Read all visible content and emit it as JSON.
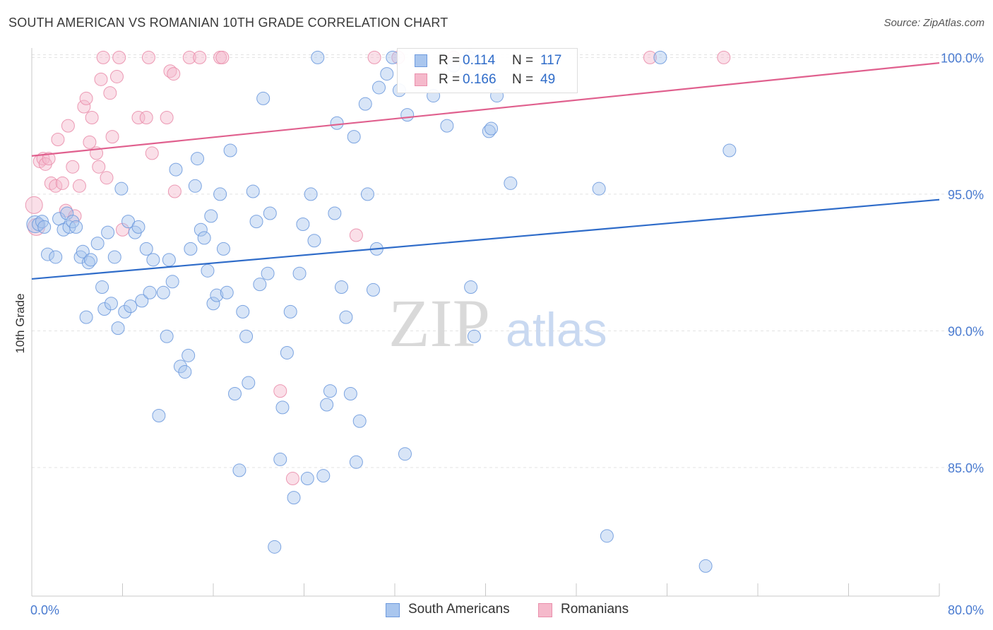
{
  "header": {
    "title": "SOUTH AMERICAN VS ROMANIAN 10TH GRADE CORRELATION CHART",
    "source": "Source: ZipAtlas.com"
  },
  "watermark": {
    "zip": "ZIP",
    "atlas": "atlas"
  },
  "legend": {
    "south": {
      "r_label": "R =",
      "r_value": "0.114",
      "n_label": "N =",
      "n_value": "117"
    },
    "romanian": {
      "r_label": "R =",
      "r_value": "0.166",
      "n_label": "N =",
      "n_value": "49"
    }
  },
  "bottom_legend": {
    "south": "South Americans",
    "romanian": "Romanians"
  },
  "colors": {
    "blue_fill": "#a9c6ee",
    "blue_stroke": "#6f9bde",
    "blue_line": "#2f6cc9",
    "pink_fill": "#f5b9cb",
    "pink_stroke": "#ea8fac",
    "pink_line": "#e0608e",
    "tick_label": "#4a7bd0",
    "grid": "#e3e3e3"
  },
  "chart_data": {
    "type": "scatter",
    "title": "SOUTH AMERICAN VS ROMANIAN 10TH GRADE CORRELATION CHART",
    "xlabel": "",
    "ylabel": "10th Grade",
    "xlim": [
      0,
      80
    ],
    "ylim": [
      80.3,
      100.5
    ],
    "x_tick_labels": [
      "0.0%",
      "80.0%"
    ],
    "y_ticks": [
      85,
      90,
      95,
      100
    ],
    "y_tick_labels": [
      "85.0%",
      "90.0%",
      "95.0%",
      "100.0%"
    ],
    "grid": "horizontal dashed",
    "legend_position": "top-center",
    "series": [
      {
        "name": "South Americans",
        "color": "#a9c6ee",
        "trend": {
          "x": [
            0,
            80
          ],
          "y": [
            91.9,
            94.8
          ]
        },
        "points": [
          [
            0.3,
            93.9
          ],
          [
            0.6,
            93.9
          ],
          [
            0.9,
            94.0
          ],
          [
            1.1,
            93.8
          ],
          [
            1.4,
            92.8
          ],
          [
            2.1,
            92.7
          ],
          [
            2.4,
            94.1
          ],
          [
            2.8,
            93.7
          ],
          [
            3.1,
            94.3
          ],
          [
            3.3,
            93.8
          ],
          [
            3.6,
            94.0
          ],
          [
            3.9,
            93.8
          ],
          [
            4.3,
            92.7
          ],
          [
            4.5,
            92.9
          ],
          [
            5.0,
            92.5
          ],
          [
            5.2,
            92.6
          ],
          [
            4.8,
            90.5
          ],
          [
            5.8,
            93.2
          ],
          [
            6.2,
            91.6
          ],
          [
            6.4,
            90.8
          ],
          [
            6.7,
            93.6
          ],
          [
            7.0,
            91.0
          ],
          [
            7.3,
            92.7
          ],
          [
            7.6,
            90.1
          ],
          [
            7.9,
            95.2
          ],
          [
            8.2,
            90.7
          ],
          [
            8.5,
            94.0
          ],
          [
            8.7,
            90.9
          ],
          [
            9.1,
            93.6
          ],
          [
            9.4,
            93.8
          ],
          [
            9.7,
            91.1
          ],
          [
            10.1,
            93.0
          ],
          [
            10.4,
            91.4
          ],
          [
            10.7,
            92.6
          ],
          [
            11.2,
            86.9
          ],
          [
            11.6,
            91.4
          ],
          [
            11.9,
            89.8
          ],
          [
            12.1,
            92.6
          ],
          [
            12.4,
            91.8
          ],
          [
            12.7,
            95.9
          ],
          [
            13.1,
            88.7
          ],
          [
            13.5,
            88.5
          ],
          [
            13.8,
            89.1
          ],
          [
            14.0,
            93.0
          ],
          [
            14.4,
            95.3
          ],
          [
            14.6,
            96.3
          ],
          [
            14.9,
            93.7
          ],
          [
            15.2,
            93.4
          ],
          [
            15.5,
            92.2
          ],
          [
            15.8,
            94.2
          ],
          [
            16.0,
            91.0
          ],
          [
            16.3,
            91.3
          ],
          [
            16.6,
            95.0
          ],
          [
            16.9,
            93.0
          ],
          [
            17.2,
            91.4
          ],
          [
            17.5,
            96.6
          ],
          [
            17.9,
            87.7
          ],
          [
            18.3,
            84.9
          ],
          [
            18.6,
            90.7
          ],
          [
            18.9,
            89.8
          ],
          [
            19.1,
            88.1
          ],
          [
            19.5,
            95.1
          ],
          [
            19.8,
            94.0
          ],
          [
            20.1,
            91.7
          ],
          [
            20.4,
            98.5
          ],
          [
            20.8,
            92.1
          ],
          [
            21.0,
            94.3
          ],
          [
            21.4,
            82.1
          ],
          [
            21.9,
            85.3
          ],
          [
            22.1,
            87.2
          ],
          [
            22.5,
            89.2
          ],
          [
            22.8,
            90.7
          ],
          [
            23.1,
            83.9
          ],
          [
            23.6,
            92.1
          ],
          [
            23.9,
            93.9
          ],
          [
            24.3,
            84.6
          ],
          [
            24.6,
            95.0
          ],
          [
            24.9,
            93.3
          ],
          [
            25.2,
            100.0
          ],
          [
            25.7,
            84.7
          ],
          [
            26.0,
            87.3
          ],
          [
            26.3,
            87.8
          ],
          [
            26.7,
            94.3
          ],
          [
            26.9,
            97.6
          ],
          [
            27.3,
            91.6
          ],
          [
            27.7,
            90.5
          ],
          [
            28.1,
            87.7
          ],
          [
            28.4,
            97.1
          ],
          [
            28.6,
            85.2
          ],
          [
            28.9,
            86.7
          ],
          [
            29.4,
            98.3
          ],
          [
            29.6,
            95.0
          ],
          [
            30.1,
            91.5
          ],
          [
            30.4,
            93.0
          ],
          [
            30.6,
            98.9
          ],
          [
            31.3,
            99.4
          ],
          [
            31.8,
            100.0
          ],
          [
            32.4,
            98.8
          ],
          [
            32.9,
            85.5
          ],
          [
            33.1,
            97.9
          ],
          [
            35.4,
            98.6
          ],
          [
            36.6,
            97.5
          ],
          [
            37.2,
            99.7
          ],
          [
            38.6,
            100.0
          ],
          [
            38.7,
            91.6
          ],
          [
            39.0,
            89.8
          ],
          [
            40.3,
            97.3
          ],
          [
            40.5,
            97.4
          ],
          [
            41.0,
            98.6
          ],
          [
            42.2,
            95.4
          ],
          [
            50.0,
            95.2
          ],
          [
            50.7,
            82.5
          ],
          [
            55.4,
            100.0
          ],
          [
            61.5,
            96.6
          ],
          [
            59.4,
            81.4
          ]
        ]
      },
      {
        "name": "Romanians",
        "color": "#f5b9cb",
        "trend": {
          "x": [
            0,
            80
          ],
          "y": [
            96.4,
            99.8
          ]
        },
        "points": [
          [
            0.2,
            94.6
          ],
          [
            0.4,
            93.8
          ],
          [
            0.7,
            96.2
          ],
          [
            1.0,
            96.3
          ],
          [
            1.2,
            96.1
          ],
          [
            1.5,
            96.3
          ],
          [
            1.7,
            95.4
          ],
          [
            2.1,
            95.3
          ],
          [
            2.3,
            97.0
          ],
          [
            2.7,
            95.4
          ],
          [
            3.0,
            94.4
          ],
          [
            3.2,
            97.5
          ],
          [
            3.6,
            96.0
          ],
          [
            3.8,
            94.2
          ],
          [
            4.2,
            95.3
          ],
          [
            4.6,
            98.2
          ],
          [
            4.8,
            98.5
          ],
          [
            5.1,
            96.9
          ],
          [
            5.3,
            97.8
          ],
          [
            5.7,
            96.5
          ],
          [
            5.9,
            96.0
          ],
          [
            6.1,
            99.2
          ],
          [
            6.3,
            100.0
          ],
          [
            6.6,
            95.6
          ],
          [
            6.9,
            98.7
          ],
          [
            7.1,
            97.1
          ],
          [
            7.5,
            99.3
          ],
          [
            7.7,
            100.0
          ],
          [
            8.0,
            93.7
          ],
          [
            9.4,
            97.8
          ],
          [
            10.1,
            97.8
          ],
          [
            10.3,
            100.0
          ],
          [
            10.6,
            96.5
          ],
          [
            11.9,
            97.8
          ],
          [
            12.2,
            99.5
          ],
          [
            12.5,
            99.4
          ],
          [
            12.6,
            95.1
          ],
          [
            13.9,
            100.0
          ],
          [
            14.8,
            100.0
          ],
          [
            16.6,
            100.0
          ],
          [
            16.8,
            100.0
          ],
          [
            21.9,
            87.8
          ],
          [
            23.0,
            84.6
          ],
          [
            28.6,
            93.5
          ],
          [
            30.2,
            100.0
          ],
          [
            32.3,
            100.0
          ],
          [
            37.2,
            100.0
          ],
          [
            54.5,
            100.0
          ],
          [
            61.0,
            100.0
          ]
        ]
      }
    ]
  }
}
